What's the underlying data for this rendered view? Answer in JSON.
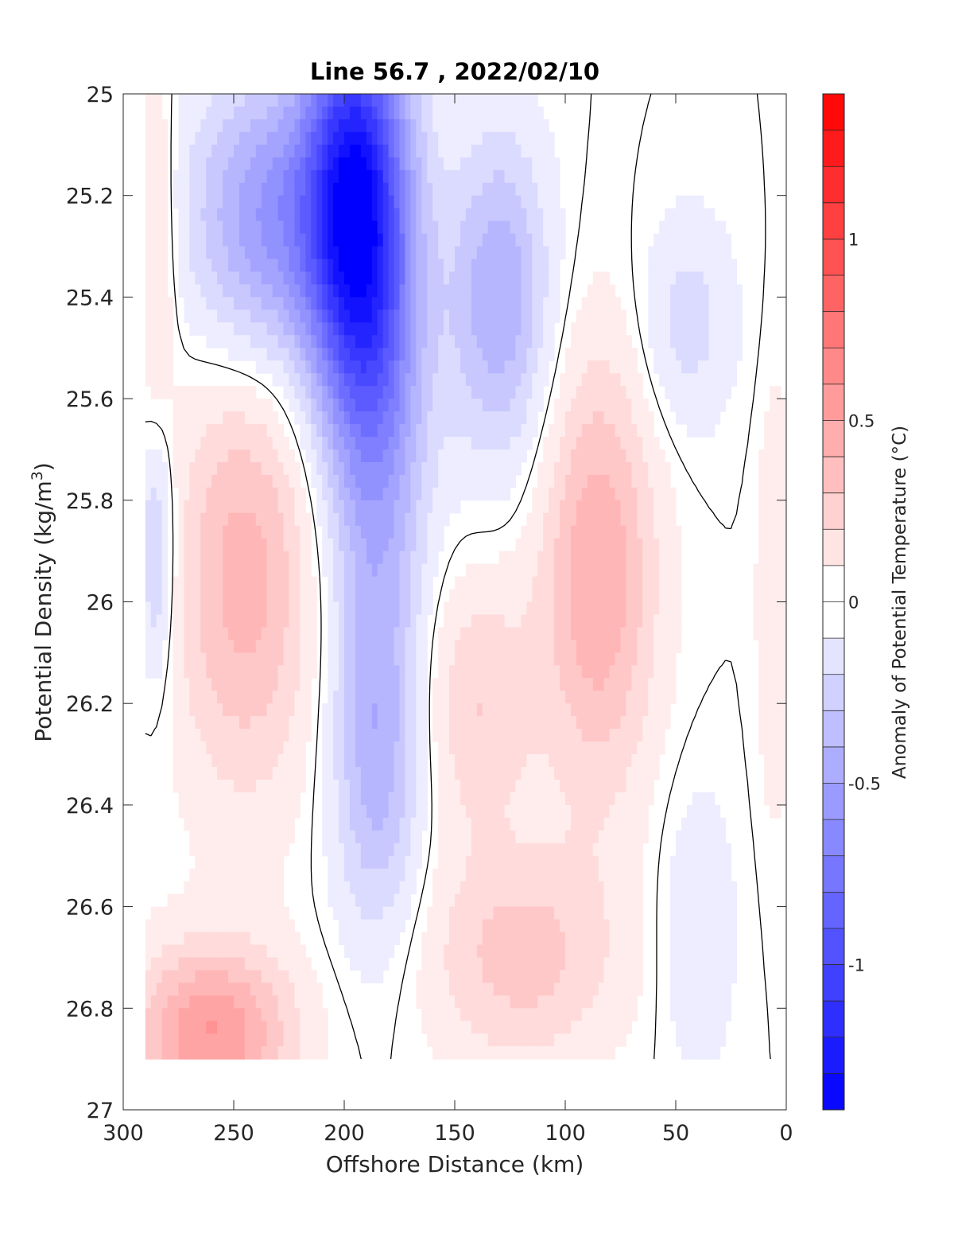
{
  "chart_data": {
    "type": "heatmap",
    "title": "Line 56.7 , 2022/02/10",
    "xlabel": "Offshore Distance (km)",
    "ylabel": "Potential Density (kg/m",
    "ylabel_sup": "3",
    "ylabel_close": ")",
    "colorbar_label": "Anomaly of Potential Temperature (°C)",
    "xlim": [
      0,
      300
    ],
    "x_reversed": true,
    "ylim": [
      25,
      27
    ],
    "y_reversed": true,
    "clim": [
      -1.4,
      1.4
    ],
    "contour_step": 0.1,
    "contour_line_level": 0,
    "x_ticks": [
      300,
      250,
      200,
      150,
      100,
      50,
      0
    ],
    "x_tick_labels": [
      "300",
      "250",
      "200",
      "150",
      "100",
      "50",
      "0"
    ],
    "y_ticks": [
      25,
      25.2,
      25.4,
      25.6,
      25.8,
      26,
      26.2,
      26.4,
      26.6,
      26.8,
      27
    ],
    "y_tick_labels": [
      "25",
      "25.2",
      "25.4",
      "25.6",
      "25.8",
      "26",
      "26.2",
      "26.4",
      "26.6",
      "26.8",
      "27"
    ],
    "colorbar_ticks": [
      1,
      0.5,
      0,
      -0.5,
      -1
    ],
    "colorbar_tick_labels": [
      "1",
      "0.5",
      "0",
      "-0.5",
      "-1"
    ],
    "colors": {
      "negative": "#0000ff",
      "zero": "#ffffff",
      "positive": "#ff0000"
    },
    "grid": {
      "x": [
        290,
        280,
        270,
        260,
        250,
        240,
        230,
        220,
        210,
        200,
        190,
        180,
        170,
        160,
        150,
        140,
        130,
        120,
        110,
        100,
        90,
        80,
        70,
        60,
        50,
        40,
        30,
        20,
        10,
        0
      ],
      "y": [
        25.0,
        25.1,
        25.2,
        25.3,
        25.4,
        25.5,
        25.6,
        25.7,
        25.8,
        25.9,
        26.0,
        26.1,
        26.2,
        26.3,
        26.4,
        26.5,
        26.6,
        26.7,
        26.8,
        26.9
      ]
    },
    "data_extent": {
      "x_shallow": [
        290,
        60
      ],
      "y_top": 25.0,
      "y_bottom": 26.9
    },
    "features": [
      {
        "x": 196,
        "y": 25.2,
        "value": -1.1,
        "sx": 16,
        "sy": 0.28
      },
      {
        "x": 185,
        "y": 25.55,
        "value": -0.55,
        "sx": 16,
        "sy": 0.35
      },
      {
        "x": 235,
        "y": 25.25,
        "value": -0.55,
        "sx": 24,
        "sy": 0.2
      },
      {
        "x": 130,
        "y": 25.4,
        "value": -0.45,
        "sx": 16,
        "sy": 0.22
      },
      {
        "x": 185,
        "y": 26.3,
        "value": -0.4,
        "sx": 14,
        "sy": 0.25
      },
      {
        "x": 285,
        "y": 25.9,
        "value": -0.3,
        "sx": 6,
        "sy": 0.18
      },
      {
        "x": 45,
        "y": 25.45,
        "value": -0.2,
        "sx": 15,
        "sy": 0.15
      },
      {
        "x": 40,
        "y": 26.65,
        "value": -0.15,
        "sx": 12,
        "sy": 0.2
      },
      {
        "x": 245,
        "y": 25.95,
        "value": 0.4,
        "sx": 22,
        "sy": 0.3
      },
      {
        "x": 85,
        "y": 25.95,
        "value": 0.45,
        "sx": 18,
        "sy": 0.3
      },
      {
        "x": 260,
        "y": 26.85,
        "value": 0.55,
        "sx": 25,
        "sy": 0.12
      },
      {
        "x": 285,
        "y": 25.3,
        "value": 0.2,
        "sx": 6,
        "sy": 0.25
      },
      {
        "x": 120,
        "y": 26.7,
        "value": 0.3,
        "sx": 30,
        "sy": 0.15
      },
      {
        "x": 140,
        "y": 26.2,
        "value": 0.25,
        "sx": 18,
        "sy": 0.18
      },
      {
        "x": 5,
        "y": 26.0,
        "value": 0.15,
        "sx": 6,
        "sy": 0.3
      }
    ]
  }
}
